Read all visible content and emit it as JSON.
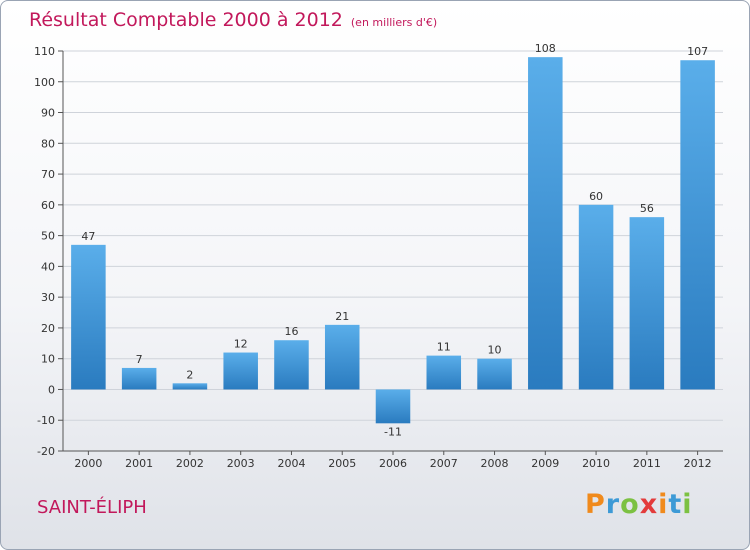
{
  "header": {
    "title": "Résultat Comptable 2000 à 2012",
    "subtitle": "(en milliers d'€)"
  },
  "footer": {
    "location": "SAINT-ÉLIPH",
    "logo_letters": [
      "P",
      "r",
      "o",
      "x",
      "i",
      "t",
      "i"
    ]
  },
  "colors": {
    "bar_top": "#5aaeea",
    "bar_bottom": "#2a7bbf",
    "title": "#c2185b",
    "grid": "#cfd3da"
  },
  "chart_data": {
    "type": "bar",
    "title": "Résultat Comptable 2000 à 2012",
    "subtitle": "(en milliers d'€)",
    "categories": [
      "2000",
      "2001",
      "2002",
      "2003",
      "2004",
      "2005",
      "2006",
      "2007",
      "2008",
      "2009",
      "2010",
      "2011",
      "2012"
    ],
    "values": [
      47,
      7,
      2,
      12,
      16,
      21,
      -11,
      11,
      10,
      108,
      60,
      56,
      107
    ],
    "data_labels": [
      "47",
      "7",
      "2",
      "12",
      "16",
      "21",
      "-11",
      "11",
      "10",
      "108",
      "60",
      "56",
      "107"
    ],
    "ylim": [
      -20,
      110
    ],
    "yticks": [
      -20,
      -10,
      0,
      10,
      20,
      30,
      40,
      50,
      60,
      70,
      80,
      90,
      100,
      110
    ],
    "ytick_labels": [
      "-20",
      "-10",
      "0",
      "10",
      "20",
      "30",
      "40",
      "50",
      "60",
      "70",
      "80",
      "90",
      "100",
      "110"
    ],
    "grid": "horizontal",
    "legend": "none"
  }
}
